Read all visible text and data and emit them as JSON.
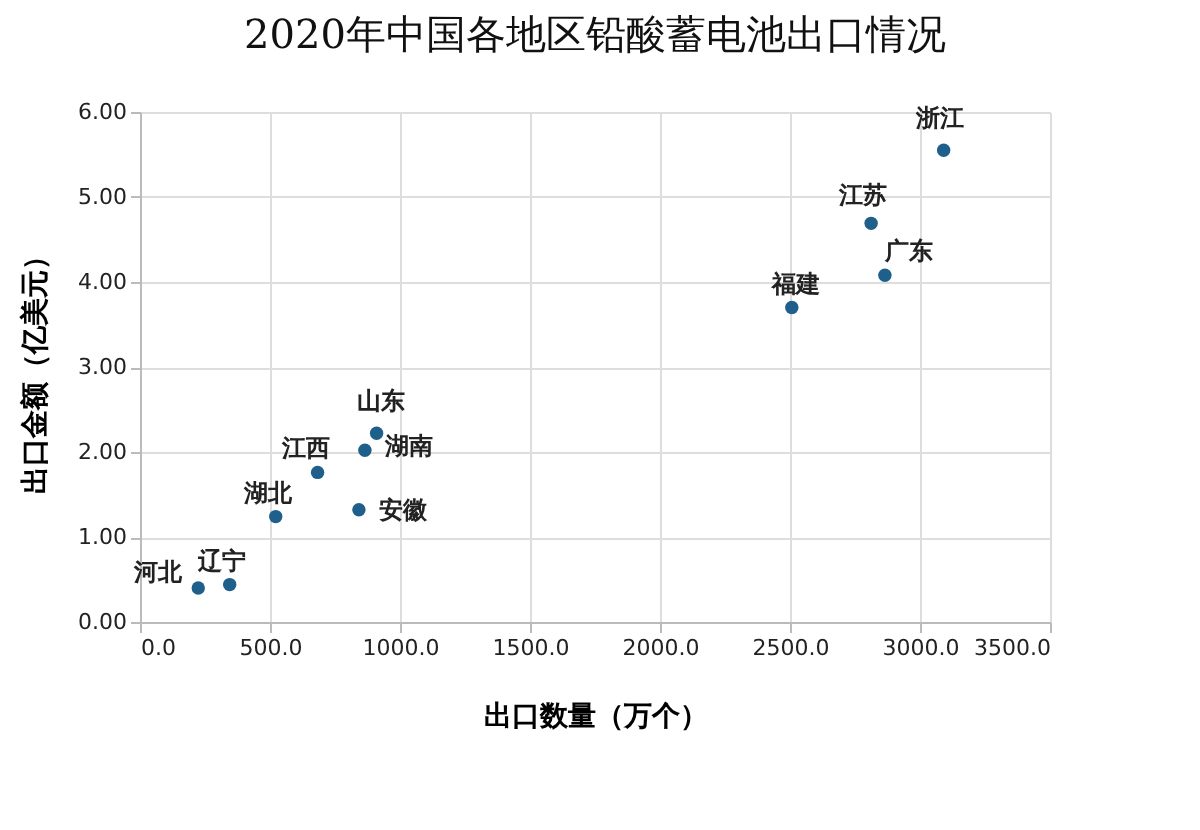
{
  "chart_data": {
    "type": "scatter",
    "title": "2020年中国各地区铅酸蓄电池出口情况",
    "xlabel": "出口数量（万个）",
    "ylabel": "出口金额（亿美元）",
    "series": [
      {
        "color": "#1f5f8b",
        "x": [
          224,
          345,
          522,
          683,
          910,
          865,
          842,
          2507,
          2812,
          2865,
          3091
        ],
        "values": [
          0.4,
          0.44,
          1.24,
          1.76,
          2.22,
          2.02,
          1.32,
          3.7,
          4.69,
          4.08,
          5.55
        ]
      }
    ],
    "annotations": [
      {
        "text": "河北",
        "x": 224,
        "y": 0.4
      },
      {
        "text": "辽宁",
        "x": 345,
        "y": 0.44
      },
      {
        "text": "湖北",
        "x": 522,
        "y": 1.24
      },
      {
        "text": "江西",
        "x": 683,
        "y": 1.76
      },
      {
        "text": "山东",
        "x": 910,
        "y": 2.22
      },
      {
        "text": "湖南",
        "x": 865,
        "y": 2.02
      },
      {
        "text": "安徽",
        "x": 842,
        "y": 1.32
      },
      {
        "text": "福建",
        "x": 2507,
        "y": 3.7
      },
      {
        "text": "江苏",
        "x": 2812,
        "y": 4.69
      },
      {
        "text": "广东",
        "x": 2865,
        "y": 4.08
      },
      {
        "text": "浙江",
        "x": 3091,
        "y": 5.55
      }
    ],
    "xlim": [
      0,
      3500
    ],
    "xticks": [
      {
        "value": 0,
        "label": "0.0"
      },
      {
        "value": 500,
        "label": "500.0"
      },
      {
        "value": 1000,
        "label": "1000.0"
      },
      {
        "value": 1500,
        "label": "1500.0"
      },
      {
        "value": 2000,
        "label": "2000.0"
      },
      {
        "value": 2500,
        "label": "2500.0"
      },
      {
        "value": 3000,
        "label": "3000.0"
      },
      {
        "value": 3500,
        "label": "3500.0"
      }
    ],
    "ylim": [
      0,
      6
    ],
    "yticks": [
      {
        "value": 0,
        "label": "0.00"
      },
      {
        "value": 1,
        "label": "1.00"
      },
      {
        "value": 2,
        "label": "2.00"
      },
      {
        "value": 3,
        "label": "3.00"
      },
      {
        "value": 4,
        "label": "4.00"
      },
      {
        "value": 5,
        "label": "5.00"
      },
      {
        "value": 6,
        "label": "6.00"
      }
    ],
    "grid": true,
    "marker": "circle"
  }
}
